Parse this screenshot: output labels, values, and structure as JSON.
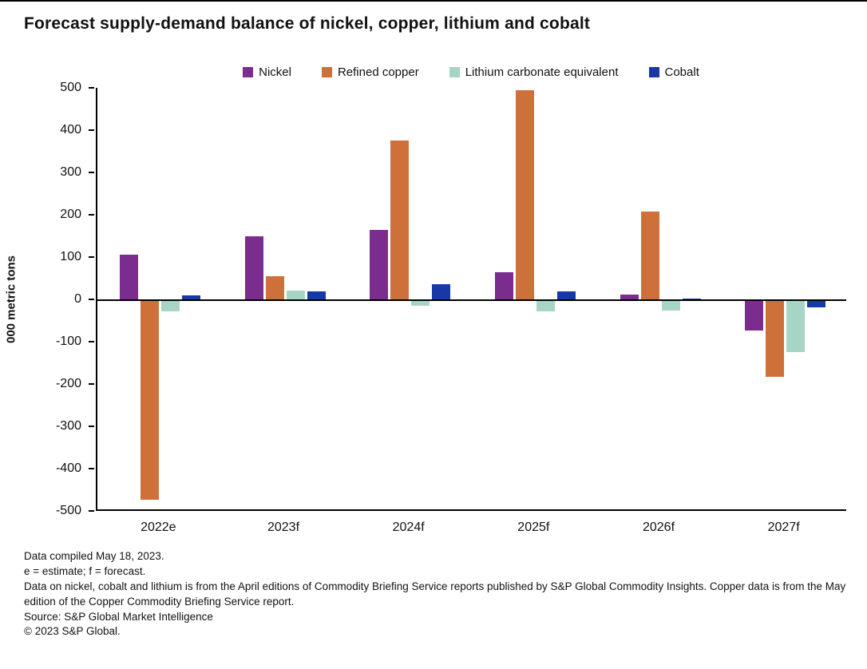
{
  "chart_data": {
    "type": "bar",
    "title": "Forecast supply-demand balance of nickel, copper, lithium and cobalt",
    "xlabel": "",
    "ylabel": "000 metric tons",
    "ylim": [
      -500,
      500
    ],
    "ytick_step": 100,
    "grid": false,
    "legend_position": "top",
    "categories": [
      "2022e",
      "2023f",
      "2024f",
      "2025f",
      "2026f",
      "2027f"
    ],
    "series": [
      {
        "name": "Nickel",
        "color": "#7B2C8F",
        "values": [
          105,
          150,
          165,
          65,
          12,
          -70
        ]
      },
      {
        "name": "Refined copper",
        "color": "#CE7039",
        "values": [
          -470,
          55,
          375,
          495,
          207,
          -180
        ]
      },
      {
        "name": "Lithium carbonate equivalent",
        "color": "#A6D4C5",
        "values": [
          -25,
          20,
          -12,
          -25,
          -22,
          -120
        ]
      },
      {
        "name": "Cobalt",
        "color": "#1739A5",
        "values": [
          10,
          18,
          35,
          18,
          2,
          -15
        ]
      }
    ]
  },
  "footnotes": [
    "Data compiled May 18, 2023.",
    "e = estimate; f = forecast.",
    "Data on nickel, cobalt and lithium is from the April editions of Commodity Briefing Service reports published by S&P Global Commodity Insights. Copper data is from the May edition of the Copper Commodity Briefing Service report.",
    "Source: S&P Global Market Intelligence",
    "© 2023 S&P Global."
  ]
}
